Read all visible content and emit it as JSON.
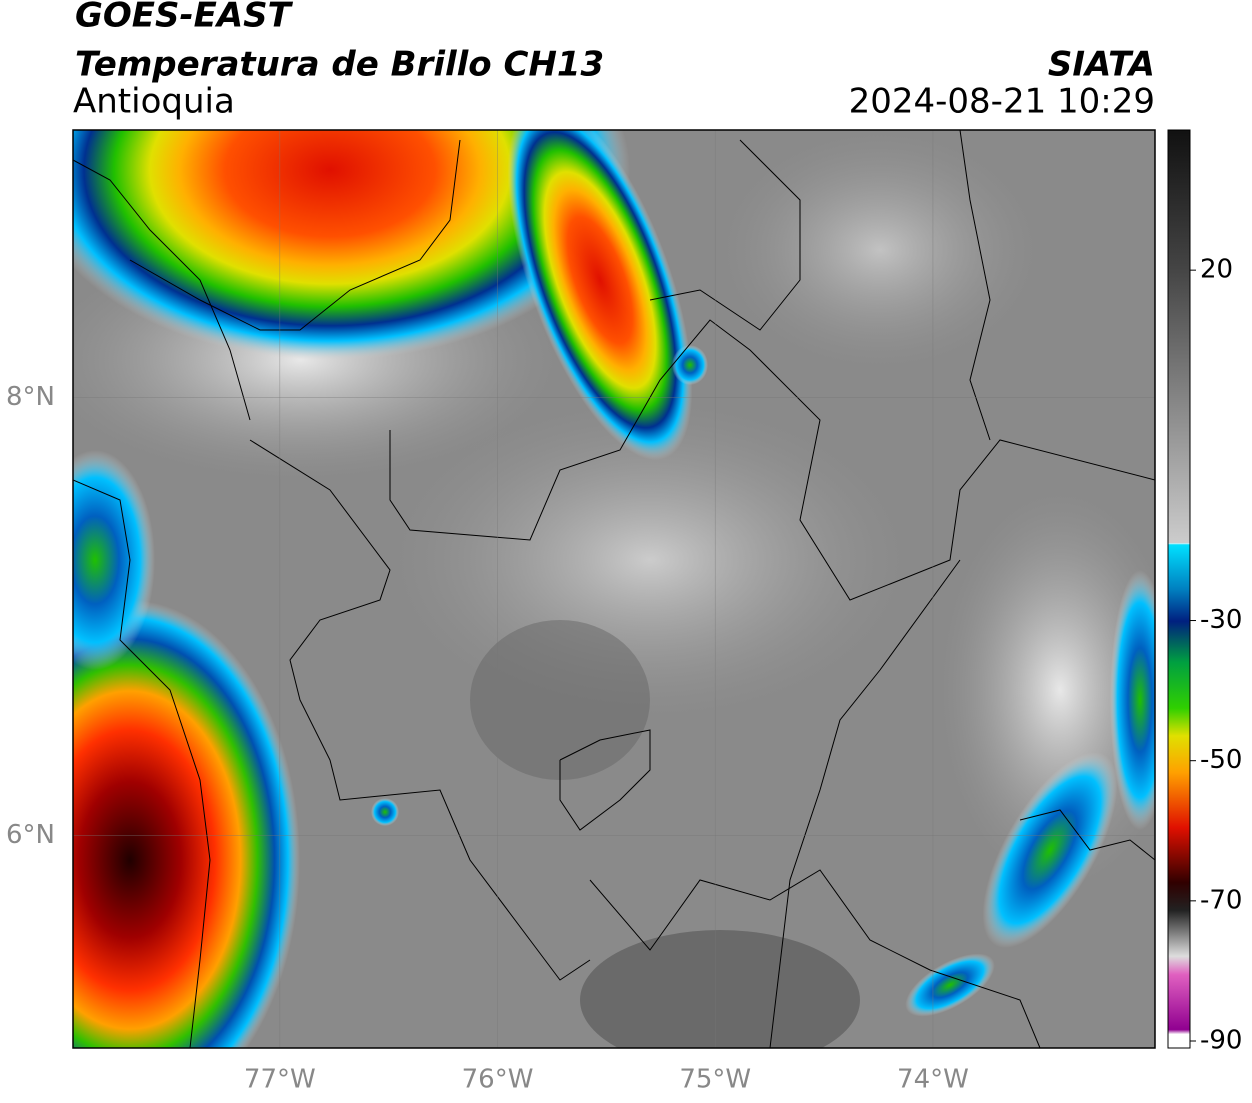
{
  "header": {
    "source": "GOES-EAST",
    "title": "Temperatura de Brillo CH13",
    "region": "Antioquia",
    "agency": "SIATA",
    "datetime": "2024-08-21 10:29"
  },
  "map": {
    "xlim": [
      -77.95,
      -72.98
    ],
    "ylim": [
      5.03,
      9.22
    ],
    "grid": true,
    "xticks": [
      {
        "value": -77,
        "label": "77°W"
      },
      {
        "value": -76,
        "label": "76°W"
      },
      {
        "value": -75,
        "label": "75°W"
      },
      {
        "value": -74,
        "label": "74°W"
      }
    ],
    "yticks": [
      {
        "value": 6,
        "label": "6°N"
      },
      {
        "value": 8,
        "label": "8°N"
      }
    ]
  },
  "colorbar": {
    "lim": [
      -91,
      40
    ],
    "ticks": [
      20,
      -30,
      -50,
      -70,
      -90
    ]
  }
}
